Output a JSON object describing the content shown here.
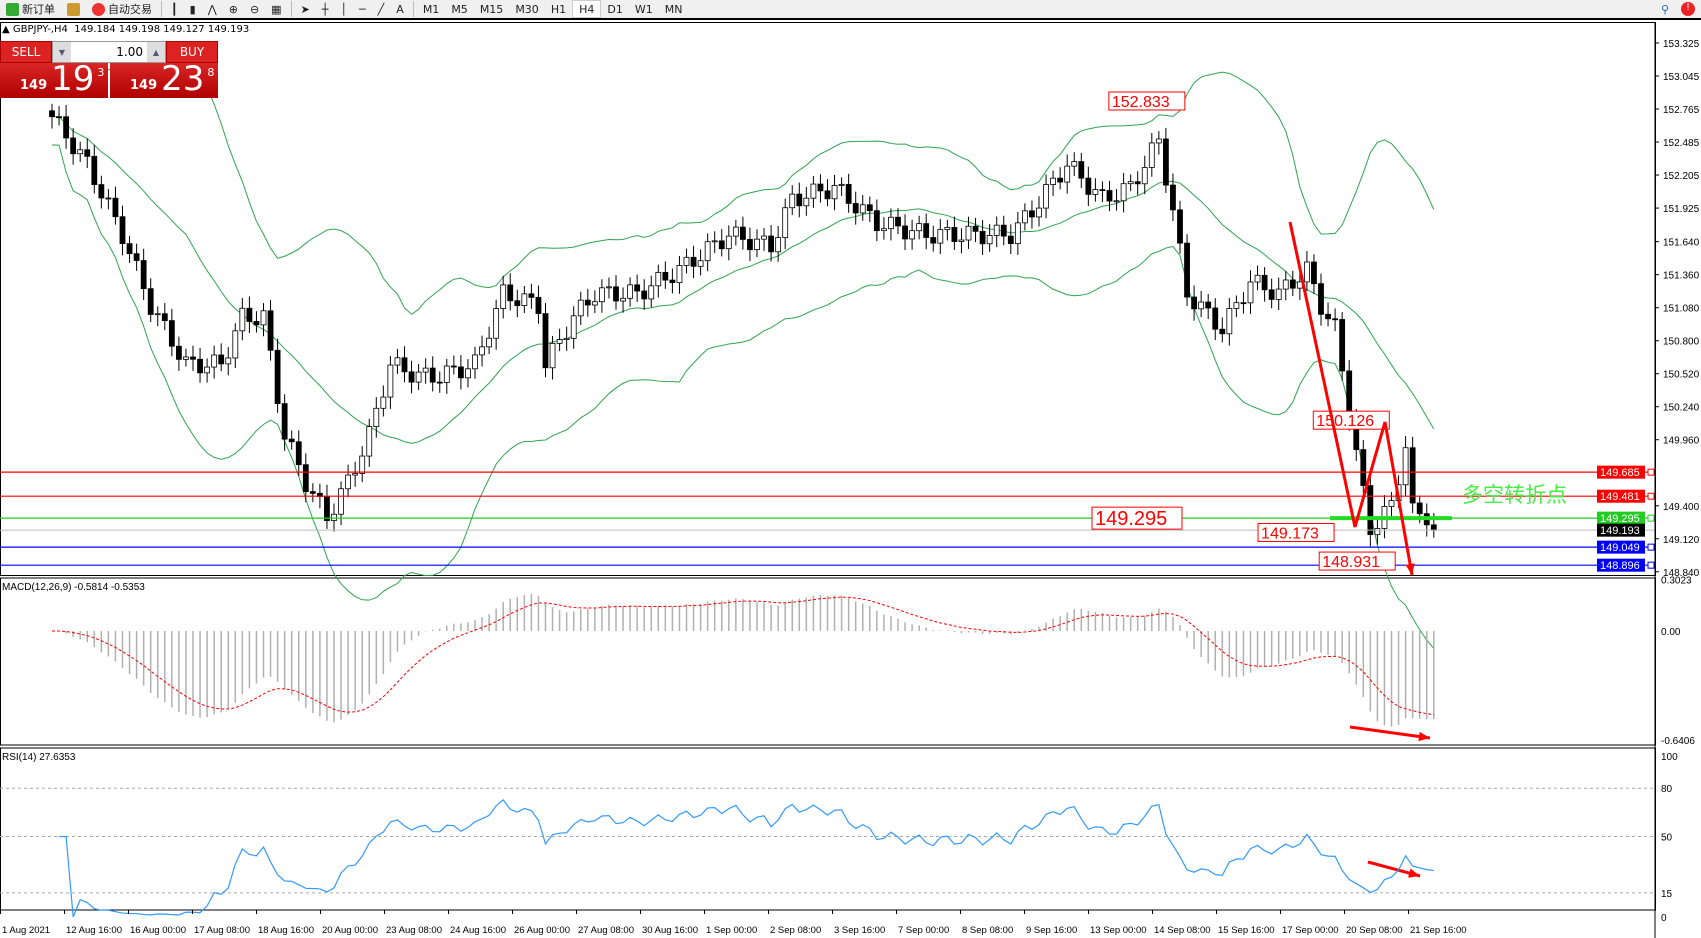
{
  "toolbar": {
    "new_order": "新订单",
    "auto_trading": "自动交易",
    "timeframes": [
      "M1",
      "M5",
      "M15",
      "M30",
      "H1",
      "H4",
      "D1",
      "W1",
      "MN"
    ],
    "active_timeframe": "H4"
  },
  "header": {
    "symbol": "GBPJPY-,H4",
    "ohlc": "149.184 149.198 149.127 149.193"
  },
  "trade": {
    "sell_label": "SELL",
    "buy_label": "BUY",
    "lot": "1.00",
    "sell_big": "19",
    "sell_small": "149",
    "sell_pip": "3",
    "buy_big": "23",
    "buy_small": "149",
    "buy_pip": "8"
  },
  "macd_label": "MACD(12,26,9) -0.5814 -0.5353",
  "rsi_label": "RSI(14) 27.6353",
  "colors": {
    "bull_candle": "#ffffff",
    "bear_candle": "#000000",
    "bands": "#2ea44f",
    "level_red": "#ff0000",
    "level_green": "#22cc22",
    "level_blue": "#0000ff",
    "rsi_line": "#3399ff",
    "macd_signal": "#ff0000",
    "macd_hist": "#b0b0b0"
  },
  "chart_data": {
    "type": "candlestick",
    "symbol": "GBPJPY",
    "timeframe": "H4",
    "price_ticks": [
      "153.325",
      "153.045",
      "152.765",
      "152.485",
      "152.205",
      "151.925",
      "151.640",
      "151.360",
      "151.080",
      "150.800",
      "150.520",
      "150.240",
      "149.960",
      "149.400",
      "149.120",
      "148.840"
    ],
    "price_range": [
      148.84,
      153.325
    ],
    "close_waypoints": [
      [
        0,
        152.7
      ],
      [
        5,
        152.3
      ],
      [
        10,
        151.7
      ],
      [
        14,
        151.1
      ],
      [
        19,
        150.6
      ],
      [
        24,
        150.6
      ],
      [
        27,
        151.0
      ],
      [
        30,
        151.0
      ],
      [
        33,
        150.0
      ],
      [
        36,
        149.6
      ],
      [
        39,
        149.3
      ],
      [
        42,
        149.6
      ],
      [
        45,
        150.0
      ],
      [
        48,
        150.6
      ],
      [
        52,
        150.5
      ],
      [
        55,
        150.5
      ],
      [
        60,
        150.6
      ],
      [
        64,
        151.2
      ],
      [
        69,
        151.1
      ],
      [
        70,
        150.6
      ],
      [
        74,
        151.0
      ],
      [
        77,
        151.2
      ],
      [
        83,
        151.2
      ],
      [
        89,
        151.4
      ],
      [
        96,
        151.7
      ],
      [
        102,
        151.6
      ],
      [
        105,
        152.0
      ],
      [
        111,
        152.1
      ],
      [
        117,
        151.8
      ],
      [
        124,
        151.7
      ],
      [
        130,
        151.7
      ],
      [
        136,
        151.7
      ],
      [
        139,
        151.9
      ],
      [
        144,
        152.3
      ],
      [
        149,
        152.0
      ],
      [
        153,
        152.1
      ],
      [
        157,
        152.5
      ],
      [
        159,
        151.9
      ],
      [
        161,
        151.2
      ],
      [
        166,
        150.9
      ],
      [
        170,
        151.3
      ],
      [
        174,
        151.2
      ],
      [
        178,
        151.4
      ],
      [
        180,
        151.1
      ],
      [
        182,
        150.9
      ],
      [
        184,
        150.2
      ],
      [
        186,
        149.5
      ],
      [
        187,
        149.2
      ],
      [
        190,
        149.4
      ],
      [
        192,
        149.9
      ],
      [
        193,
        149.4
      ],
      [
        196,
        149.193
      ]
    ],
    "horizontal_levels": [
      {
        "price": "149.685",
        "color": "#ff0000"
      },
      {
        "price": "149.481",
        "color": "#ff0000"
      },
      {
        "price": "149.295",
        "color": "#22cc22"
      },
      {
        "price": "149.049",
        "color": "#0000ff"
      },
      {
        "price": "148.896",
        "color": "#0000ff"
      }
    ],
    "current_price": "149.193",
    "annotations": [
      {
        "text": "152.833",
        "price": 152.833,
        "bar": 157
      },
      {
        "text": "150.126",
        "price": 150.126,
        "bar": 186
      },
      {
        "text": "149.295",
        "price": 149.295,
        "bar": 160
      },
      {
        "text": "149.173",
        "price": 149.173,
        "bar": 181
      },
      {
        "text": "148.931",
        "price": 148.931,
        "bar": 184
      }
    ],
    "note_text": "多空转折点",
    "macd": {
      "params": "12,26,9",
      "ticks": [
        "0.3023",
        "0.00",
        "-0.6406"
      ]
    },
    "rsi": {
      "period": 14,
      "ticks": [
        "100",
        "80",
        "50",
        "15",
        "0"
      ]
    },
    "time_labels": [
      "1 Aug 2021",
      "12 Aug 16:00",
      "16 Aug 00:00",
      "17 Aug 08:00",
      "18 Aug 16:00",
      "20 Aug 00:00",
      "23 Aug 08:00",
      "24 Aug 16:00",
      "26 Aug 00:00",
      "27 Aug 08:00",
      "30 Aug 16:00",
      "1 Sep 00:00",
      "2 Sep 08:00",
      "3 Sep 16:00",
      "7 Sep 00:00",
      "8 Sep 08:00",
      "9 Sep 16:00",
      "13 Sep 00:00",
      "14 Sep 08:00",
      "15 Sep 16:00",
      "17 Sep 00:00",
      "20 Sep 08:00",
      "21 Sep 16:00"
    ]
  }
}
